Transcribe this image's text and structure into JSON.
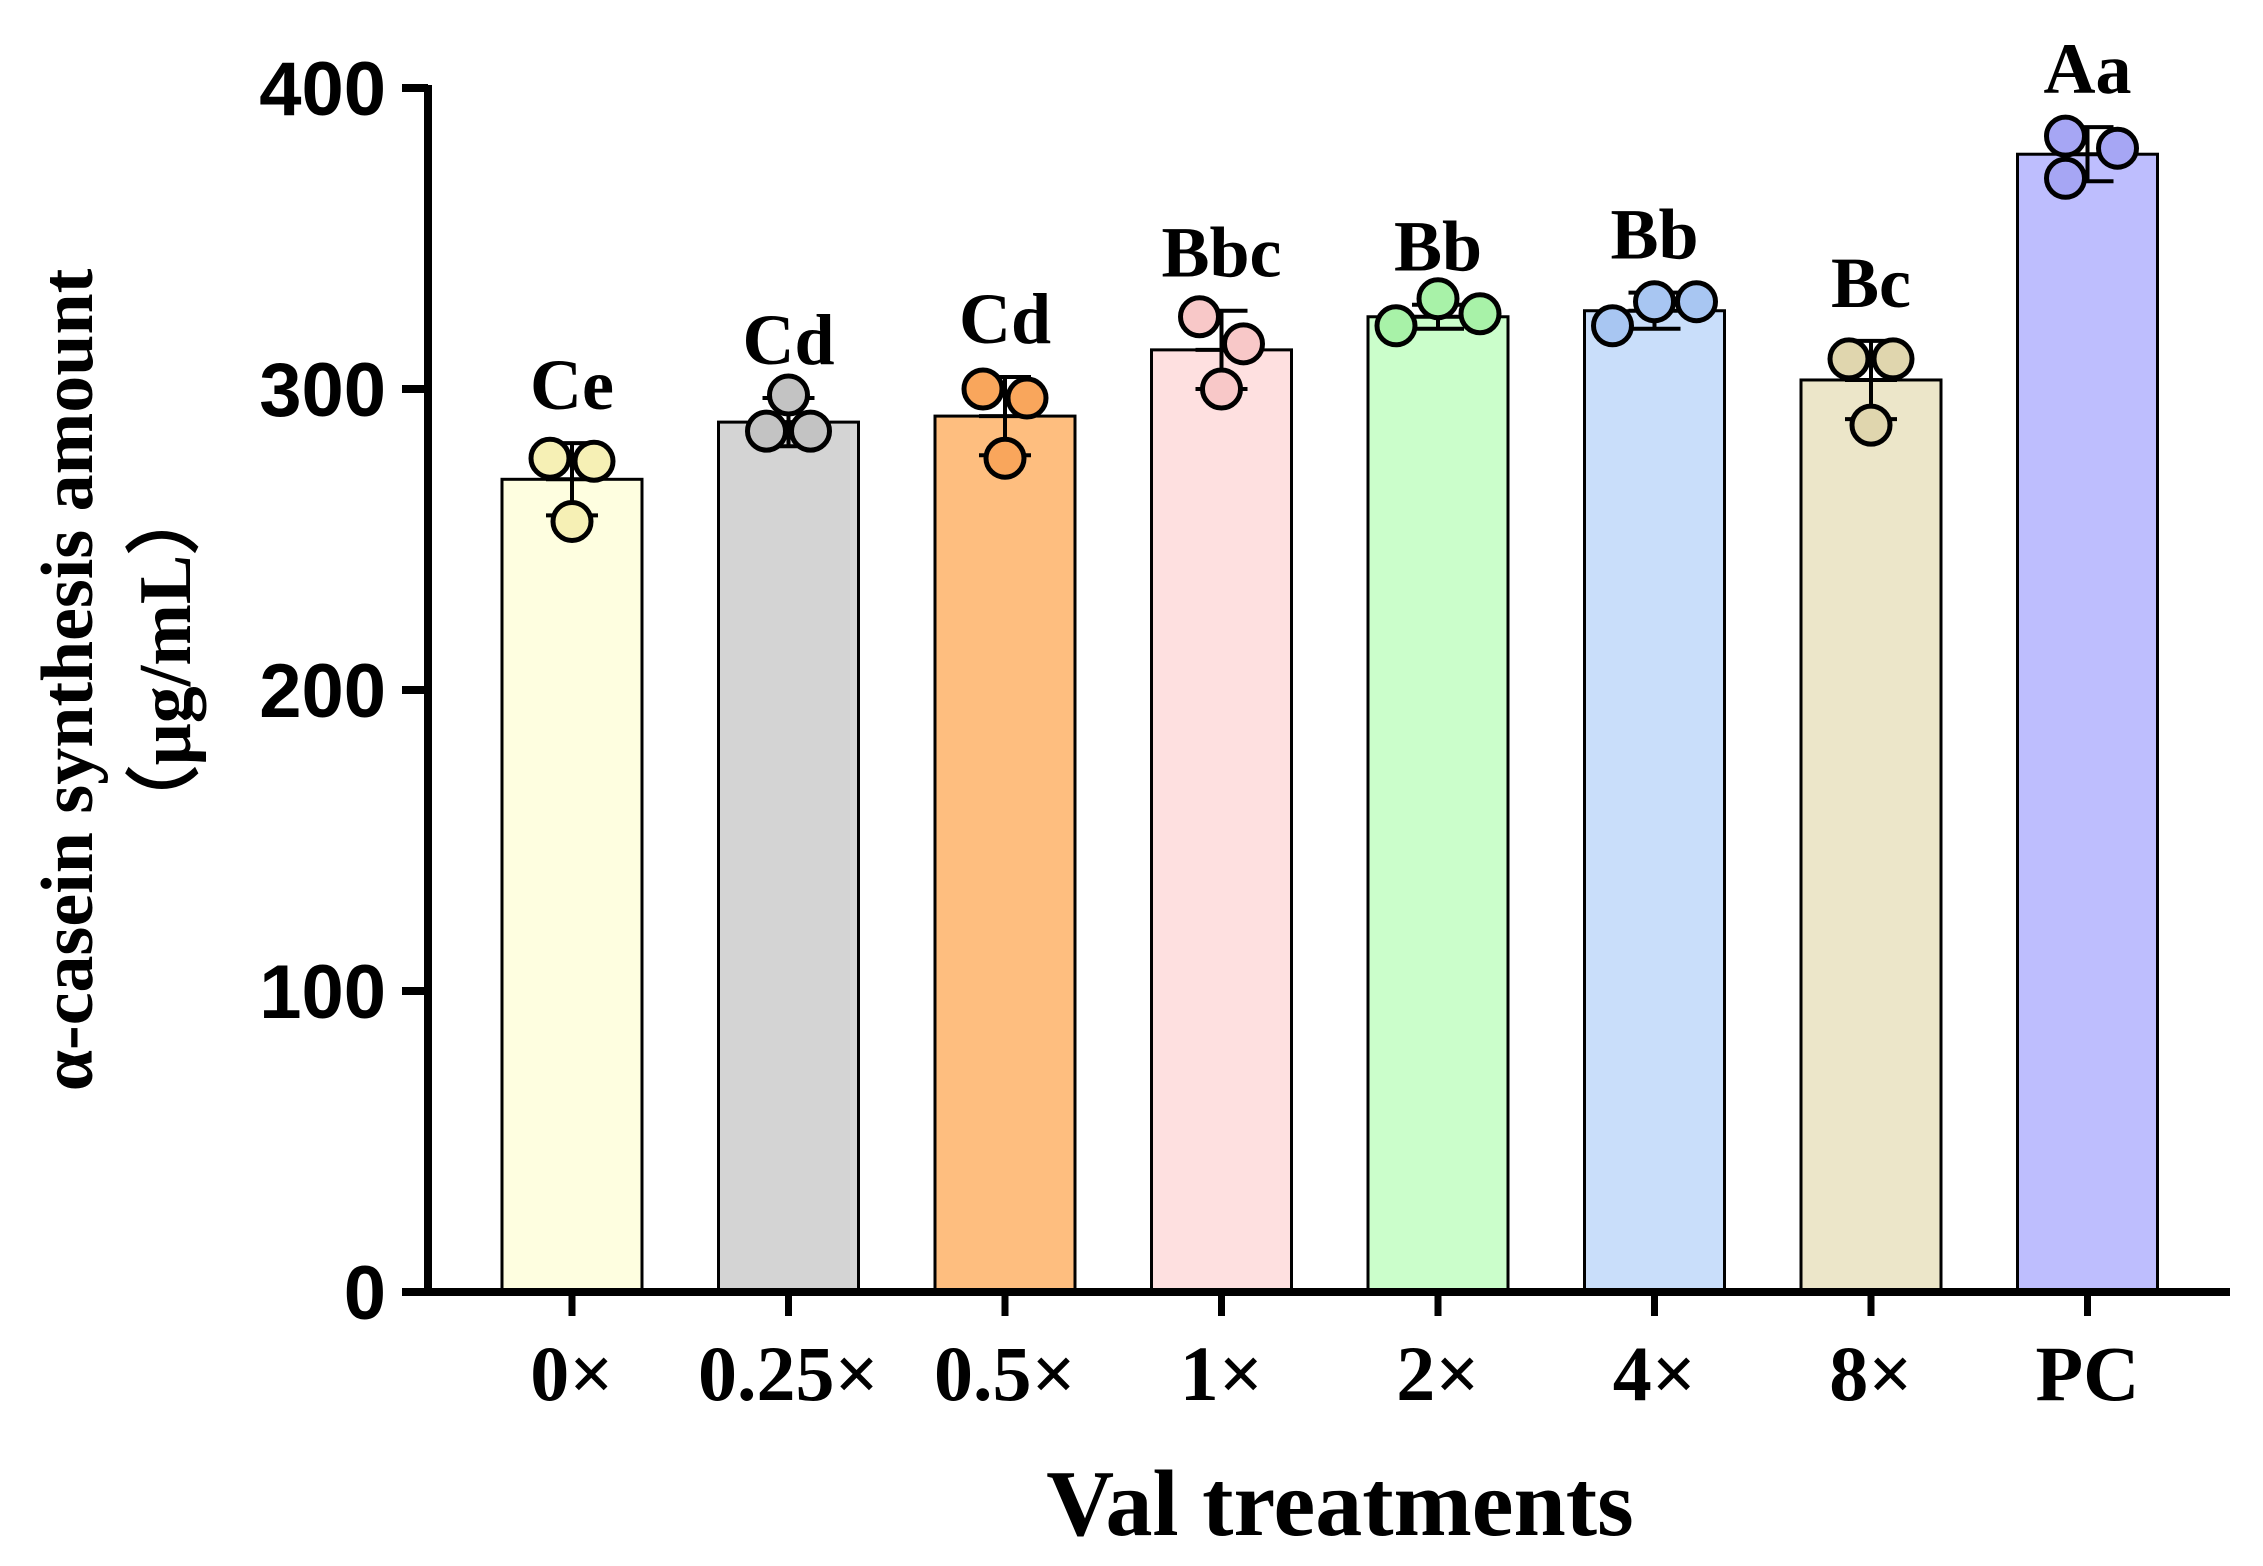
{
  "chart_data": {
    "type": "bar",
    "categories": [
      "0×",
      "0.25×",
      "0.5×",
      "1×",
      "2×",
      "4×",
      "8×",
      "PC"
    ],
    "values": [
      270,
      289,
      291,
      313,
      324,
      326,
      303,
      378
    ],
    "error": [
      12,
      8,
      13,
      13,
      4,
      6,
      13,
      9
    ],
    "points": [
      [
        277,
        276,
        256
      ],
      [
        286,
        298,
        286
      ],
      [
        300,
        297,
        277
      ],
      [
        324,
        315,
        300
      ],
      [
        321,
        330,
        325
      ],
      [
        321,
        329,
        329
      ],
      [
        310,
        310,
        288
      ],
      [
        384,
        380,
        370
      ]
    ],
    "significance": [
      "Ce",
      "Cd",
      "Cd",
      "Bbc",
      "Bb",
      "Bb",
      "Bc",
      "Aa"
    ],
    "colors": [
      "#FEFEE0",
      "#D4D4D4",
      "#FEBE7F",
      "#FEE0E0",
      "#CBFECB",
      "#C9DEFA",
      "#ECE6C9",
      "#BEBEFE"
    ],
    "point_colors": [
      "#F6F0B5",
      "#C3C3C3",
      "#F9A65C",
      "#F8C8C8",
      "#A8F2A8",
      "#A8C6F2",
      "#E0D6AE",
      "#A6A6F4"
    ],
    "title": "",
    "xlabel": "Val treatments",
    "ylabel_line1": "α-casein synthesis amount",
    "ylabel_line2": "（μg/mL）",
    "ylim": [
      0,
      400
    ],
    "yticks": [
      0,
      100,
      200,
      300,
      400
    ],
    "grid": false,
    "legend": "none"
  }
}
